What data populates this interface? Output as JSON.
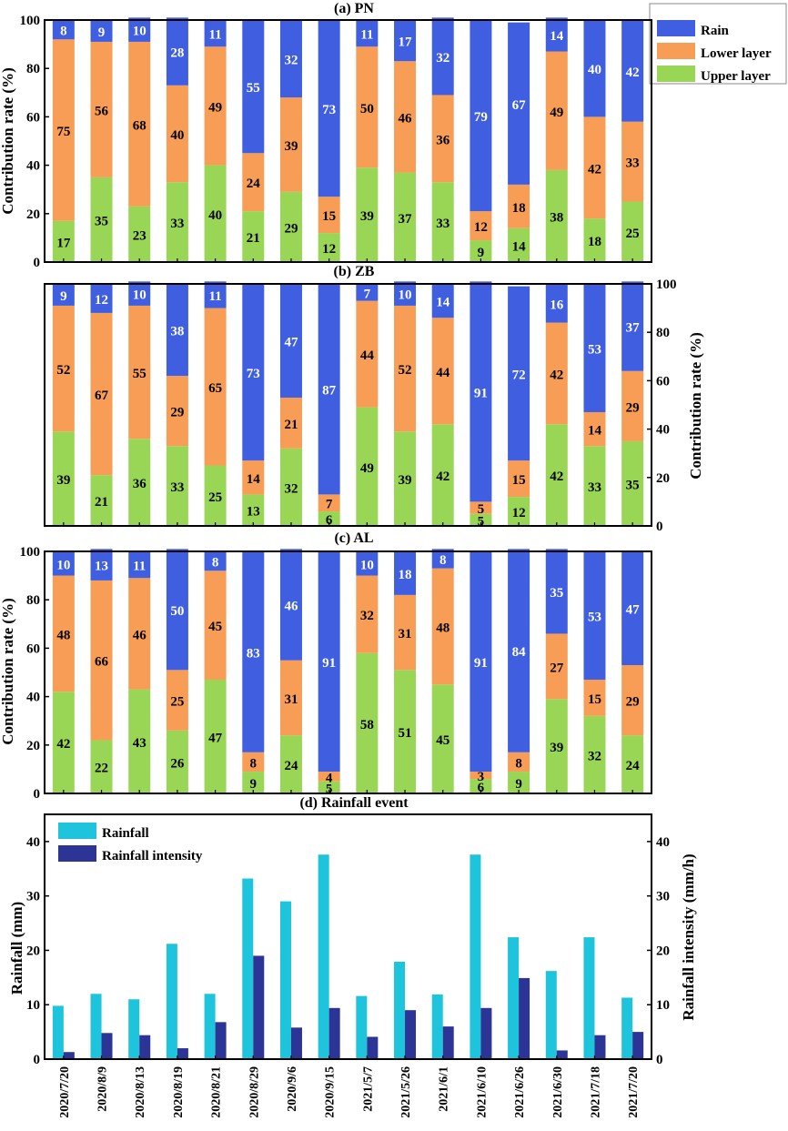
{
  "colors": {
    "rain": "#3f5fe0",
    "lower": "#f89d55",
    "upper": "#9ad656",
    "rainfall": "#1ec3dc",
    "intensity": "#2c3595",
    "axis": "#000000"
  },
  "dates": [
    "2020/7/20",
    "2020/8/9",
    "2020/8/13",
    "2020/8/19",
    "2020/8/21",
    "2020/8/29",
    "2020/9/6",
    "2020/9/15",
    "2021/5/7",
    "2021/5/26",
    "2021/6/1",
    "2021/6/10",
    "2021/6/26",
    "2021/6/30",
    "2021/7/18",
    "2021/7/20"
  ],
  "legend_top": {
    "rain": "Rain",
    "lower": "Lower layer",
    "upper": "Upper layer"
  },
  "chart_data": [
    {
      "type": "bar",
      "stacked": true,
      "title": "(a) PN",
      "ylabel": "Contribution rate (%)",
      "ylim": [
        0,
        100
      ],
      "yticks": [
        "0",
        "20",
        "40",
        "60",
        "80",
        "100"
      ],
      "series": [
        {
          "name": "Upper layer",
          "values": [
            17,
            35,
            23,
            33,
            40,
            21,
            29,
            12,
            39,
            37,
            33,
            9,
            14,
            38,
            18,
            25
          ]
        },
        {
          "name": "Lower layer",
          "values": [
            75,
            56,
            68,
            40,
            49,
            24,
            39,
            15,
            50,
            46,
            36,
            12,
            18,
            49,
            42,
            33
          ]
        },
        {
          "name": "Rain",
          "values": [
            8,
            9,
            10,
            28,
            11,
            55,
            32,
            73,
            11,
            17,
            32,
            79,
            67,
            14,
            40,
            42
          ]
        }
      ]
    },
    {
      "type": "bar",
      "stacked": true,
      "title": "(b) ZB",
      "ylabel": "Contribution rate (%)",
      "ylim": [
        0,
        100
      ],
      "yticks": [
        "0",
        "20",
        "40",
        "60",
        "80",
        "100"
      ],
      "series": [
        {
          "name": "Upper layer",
          "values": [
            39,
            21,
            36,
            33,
            25,
            13,
            32,
            6,
            49,
            39,
            42,
            5,
            12,
            42,
            33,
            35
          ]
        },
        {
          "name": "Lower layer",
          "values": [
            52,
            67,
            55,
            29,
            65,
            14,
            21,
            7,
            44,
            52,
            44,
            5,
            15,
            42,
            14,
            29
          ]
        },
        {
          "name": "Rain",
          "values": [
            9,
            12,
            10,
            38,
            11,
            73,
            47,
            87,
            7,
            10,
            14,
            91,
            72,
            16,
            53,
            37
          ]
        }
      ]
    },
    {
      "type": "bar",
      "stacked": true,
      "title": "(c) AL",
      "ylabel": "Contribution rate (%)",
      "ylim": [
        0,
        100
      ],
      "yticks": [
        "0",
        "20",
        "40",
        "60",
        "80",
        "100"
      ],
      "series": [
        {
          "name": "Upper layer",
          "values": [
            42,
            22,
            43,
            26,
            47,
            9,
            24,
            5,
            58,
            51,
            45,
            6,
            9,
            39,
            32,
            24
          ]
        },
        {
          "name": "Lower layer",
          "values": [
            48,
            66,
            46,
            25,
            45,
            8,
            31,
            4,
            32,
            31,
            48,
            3,
            8,
            27,
            15,
            29
          ]
        },
        {
          "name": "Rain",
          "values": [
            10,
            13,
            11,
            50,
            8,
            83,
            46,
            91,
            10,
            18,
            8,
            91,
            84,
            35,
            53,
            47
          ]
        }
      ]
    },
    {
      "type": "bar",
      "title": "(d) Rainfall event",
      "ylabel": "Rainfall (mm)",
      "y2label": "Rainfall intensity (mm/h)",
      "ylim": [
        0,
        45
      ],
      "yticks": [
        "0",
        "10",
        "20",
        "30",
        "40"
      ],
      "legend": [
        "Rainfall",
        "Rainfall intensity"
      ],
      "series": [
        {
          "name": "Rainfall",
          "values": [
            9.8,
            12,
            11,
            21.2,
            12,
            33.2,
            29,
            37.6,
            11.6,
            17.9,
            11.9,
            37.6,
            22.4,
            16.2,
            22.4,
            11.3
          ]
        },
        {
          "name": "Rainfall intensity",
          "values": [
            1.3,
            4.8,
            4.4,
            2,
            6.8,
            19,
            5.8,
            9.4,
            4.1,
            9,
            6,
            9.4,
            14.9,
            1.6,
            4.4,
            5
          ]
        }
      ]
    }
  ]
}
